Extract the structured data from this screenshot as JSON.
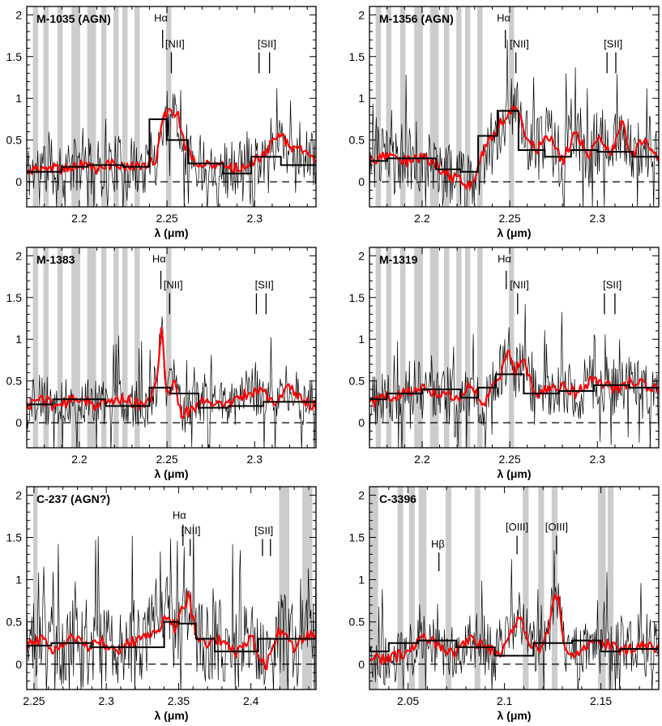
{
  "chart_data": [
    {
      "type": "line",
      "title": "M-1035 (AGN)",
      "xlabel": "λ (μm)",
      "ylabel": "",
      "xlim": [
        2.17,
        2.335
      ],
      "ylim": [
        -0.3,
        2.1
      ],
      "xticks": [
        2.2,
        2.25,
        2.3
      ],
      "xtick_labels": [
        "2.2",
        "2.25",
        "2.3"
      ],
      "yticks": [
        0,
        0.5,
        1,
        1.5,
        2
      ],
      "ytick_labels": [
        "0",
        "0.5",
        "1",
        "1.5",
        "2"
      ],
      "sky_bands": [
        [
          2.1735,
          2.1765
        ],
        [
          2.1795,
          2.1825
        ],
        [
          2.1875,
          2.1905
        ],
        [
          2.1955,
          2.2005
        ],
        [
          2.2045,
          2.2095
        ],
        [
          2.2125,
          2.2155
        ],
        [
          2.2195,
          2.2225
        ],
        [
          2.2245,
          2.2275
        ],
        [
          2.2315,
          2.2345
        ],
        [
          2.2495,
          2.2525
        ]
      ],
      "lines": [
        {
          "label": "Hα",
          "x": 2.2475,
          "y0": 1.6,
          "y1": 1.82,
          "lx": 2.2465,
          "ly": 1.92
        },
        {
          "label": "[NII]",
          "x": 2.2525,
          "y0": 1.3,
          "y1": 1.55,
          "lx": 2.2545,
          "ly": 1.61
        },
        {
          "label": "[SII]",
          "x": 2.3025,
          "y0": 1.3,
          "y1": 1.55,
          "lx": 2.307,
          "ly": 1.61
        },
        {
          "label": "",
          "x": 2.3085,
          "y0": 1.3,
          "y1": 1.55
        }
      ],
      "smooth": {
        "name": "smoothed spectrum",
        "color": "#ff0000",
        "x": [
          2.17,
          2.18,
          2.19,
          2.2,
          2.21,
          2.22,
          2.23,
          2.238,
          2.244,
          2.248,
          2.252,
          2.256,
          2.26,
          2.265,
          2.275,
          2.285,
          2.295,
          2.303,
          2.31,
          2.316,
          2.32,
          2.325,
          2.33,
          2.335
        ],
        "y": [
          0.12,
          0.18,
          0.15,
          0.2,
          0.15,
          0.22,
          0.18,
          0.15,
          0.3,
          0.75,
          0.88,
          0.82,
          0.45,
          0.25,
          0.22,
          0.15,
          0.18,
          0.3,
          0.45,
          0.55,
          0.38,
          0.42,
          0.3,
          0.25
        ]
      },
      "binned": {
        "name": "binned spectrum",
        "color": "#000000",
        "edges": [
          2.17,
          2.19,
          2.205,
          2.225,
          2.24,
          2.25,
          2.262,
          2.282,
          2.298,
          2.315,
          2.335
        ],
        "values": [
          0.12,
          0.18,
          0.2,
          0.18,
          0.75,
          0.5,
          0.22,
          0.1,
          0.3,
          0.2
        ]
      },
      "noise_seed": 11,
      "noise_amp": 0.35
    },
    {
      "type": "line",
      "title": "M-1356 (AGN)",
      "xlabel": "λ (μm)",
      "ylabel": "",
      "xlim": [
        2.17,
        2.335
      ],
      "ylim": [
        -0.3,
        2.1
      ],
      "xticks": [
        2.2,
        2.25,
        2.3
      ],
      "xtick_labels": [
        "2.2",
        "2.25",
        "2.3"
      ],
      "yticks": [
        0,
        0.5,
        1,
        1.5,
        2
      ],
      "ytick_labels": [
        "0",
        "0.5",
        "1",
        "1.5",
        "2"
      ],
      "sky_bands": [
        [
          2.1735,
          2.1765
        ],
        [
          2.1795,
          2.1825
        ],
        [
          2.1875,
          2.1905
        ],
        [
          2.1955,
          2.2005
        ],
        [
          2.2045,
          2.2095
        ],
        [
          2.2125,
          2.2155
        ],
        [
          2.2195,
          2.2225
        ],
        [
          2.2245,
          2.2275
        ],
        [
          2.2315,
          2.2345
        ],
        [
          2.2495,
          2.2525
        ]
      ],
      "lines": [
        {
          "label": "Hα",
          "x": 2.2475,
          "y0": 1.6,
          "y1": 1.82,
          "lx": 2.2465,
          "ly": 1.92
        },
        {
          "label": "[NII]",
          "x": 2.2535,
          "y0": 1.3,
          "y1": 1.55,
          "lx": 2.2555,
          "ly": 1.61
        },
        {
          "label": "[SII]",
          "x": 2.3055,
          "y0": 1.3,
          "y1": 1.55,
          "lx": 2.309,
          "ly": 1.61
        },
        {
          "label": "",
          "x": 2.3105,
          "y0": 1.3,
          "y1": 1.55
        }
      ],
      "smooth": {
        "name": "smoothed spectrum",
        "color": "#ff0000",
        "x": [
          2.17,
          2.18,
          2.19,
          2.2,
          2.208,
          2.215,
          2.222,
          2.228,
          2.234,
          2.24,
          2.245,
          2.25,
          2.254,
          2.258,
          2.265,
          2.272,
          2.28,
          2.288,
          2.295,
          2.302,
          2.308,
          2.314,
          2.32,
          2.326,
          2.335
        ],
        "y": [
          0.25,
          0.3,
          0.25,
          0.28,
          0.2,
          0.1,
          0.0,
          -0.05,
          0.3,
          0.55,
          0.7,
          0.82,
          0.95,
          0.6,
          0.35,
          0.55,
          0.25,
          0.6,
          0.3,
          0.55,
          0.35,
          0.7,
          0.3,
          0.5,
          0.25
        ]
      },
      "binned": {
        "name": "binned spectrum",
        "color": "#000000",
        "edges": [
          2.17,
          2.18,
          2.208,
          2.222,
          2.232,
          2.243,
          2.255,
          2.27,
          2.285,
          2.3,
          2.32,
          2.335
        ],
        "values": [
          0.25,
          0.28,
          0.15,
          0.12,
          0.55,
          0.85,
          0.38,
          0.3,
          0.38,
          0.36,
          0.3
        ]
      },
      "noise_seed": 23,
      "noise_amp": 0.4
    },
    {
      "type": "line",
      "title": "M-1383",
      "xlabel": "λ (μm)",
      "ylabel": "",
      "xlim": [
        2.17,
        2.335
      ],
      "ylim": [
        -0.3,
        2.1
      ],
      "xticks": [
        2.2,
        2.25,
        2.3
      ],
      "xtick_labels": [
        "2.2",
        "2.25",
        "2.3"
      ],
      "yticks": [
        0,
        0.5,
        1,
        1.5,
        2
      ],
      "ytick_labels": [
        "0",
        "0.5",
        "1",
        "1.5",
        "2"
      ],
      "sky_bands": [
        [
          2.1735,
          2.1765
        ],
        [
          2.1795,
          2.1825
        ],
        [
          2.1875,
          2.1905
        ],
        [
          2.1955,
          2.2005
        ],
        [
          2.2045,
          2.2095
        ],
        [
          2.2125,
          2.2155
        ],
        [
          2.2195,
          2.2225
        ],
        [
          2.2245,
          2.2275
        ],
        [
          2.2315,
          2.2345
        ],
        [
          2.2495,
          2.2525
        ]
      ],
      "lines": [
        {
          "label": "Hα",
          "x": 2.2465,
          "y0": 1.6,
          "y1": 1.82,
          "lx": 2.2455,
          "ly": 1.92
        },
        {
          "label": "[NII]",
          "x": 2.2515,
          "y0": 1.3,
          "y1": 1.55,
          "lx": 2.2535,
          "ly": 1.61
        },
        {
          "label": "[SII]",
          "x": 2.301,
          "y0": 1.3,
          "y1": 1.55,
          "lx": 2.3055,
          "ly": 1.61
        },
        {
          "label": "",
          "x": 2.3065,
          "y0": 1.3,
          "y1": 1.55
        }
      ],
      "smooth": {
        "name": "smoothed spectrum",
        "color": "#ff0000",
        "x": [
          2.17,
          2.178,
          2.186,
          2.194,
          2.202,
          2.21,
          2.218,
          2.226,
          2.234,
          2.24,
          2.244,
          2.247,
          2.25,
          2.254,
          2.258,
          2.264,
          2.272,
          2.28,
          2.288,
          2.296,
          2.304,
          2.312,
          2.32,
          2.328,
          2.335
        ],
        "y": [
          0.2,
          0.3,
          0.2,
          0.25,
          0.3,
          0.2,
          0.25,
          0.3,
          0.2,
          0.25,
          0.5,
          1.18,
          0.3,
          0.5,
          0.1,
          0.15,
          0.3,
          0.2,
          0.25,
          0.35,
          0.4,
          0.2,
          0.45,
          0.25,
          0.2
        ]
      },
      "binned": {
        "name": "binned spectrum",
        "color": "#000000",
        "edges": [
          2.17,
          2.185,
          2.215,
          2.24,
          2.252,
          2.268,
          2.285,
          2.305,
          2.32,
          2.335
        ],
        "values": [
          0.22,
          0.28,
          0.2,
          0.42,
          0.35,
          0.18,
          0.2,
          0.25,
          0.25
        ]
      },
      "noise_seed": 37,
      "noise_amp": 0.3
    },
    {
      "type": "line",
      "title": "M-1319",
      "xlabel": "λ (μm)",
      "ylabel": "",
      "xlim": [
        2.17,
        2.335
      ],
      "ylim": [
        -0.3,
        2.1
      ],
      "xticks": [
        2.2,
        2.25,
        2.3
      ],
      "xtick_labels": [
        "2.2",
        "2.25",
        "2.3"
      ],
      "yticks": [
        0,
        0.5,
        1,
        1.5,
        2
      ],
      "ytick_labels": [
        "0",
        "0.5",
        "1",
        "1.5",
        "2"
      ],
      "sky_bands": [
        [
          2.1735,
          2.1765
        ],
        [
          2.1795,
          2.1825
        ],
        [
          2.1875,
          2.1905
        ],
        [
          2.1955,
          2.2005
        ],
        [
          2.2045,
          2.2095
        ],
        [
          2.2125,
          2.2155
        ],
        [
          2.2195,
          2.2225
        ],
        [
          2.2245,
          2.2275
        ],
        [
          2.2315,
          2.2345
        ],
        [
          2.2495,
          2.2525
        ]
      ],
      "lines": [
        {
          "label": "Hα",
          "x": 2.248,
          "y0": 1.6,
          "y1": 1.82,
          "lx": 2.247,
          "ly": 1.92
        },
        {
          "label": "[NII]",
          "x": 2.2545,
          "y0": 1.3,
          "y1": 1.55,
          "lx": 2.2555,
          "ly": 1.61
        },
        {
          "label": "[SII]",
          "x": 2.304,
          "y0": 1.3,
          "y1": 1.55,
          "lx": 2.3085,
          "ly": 1.61
        },
        {
          "label": "",
          "x": 2.31,
          "y0": 1.3,
          "y1": 1.55
        }
      ],
      "smooth": {
        "name": "smoothed spectrum",
        "color": "#ff0000",
        "x": [
          2.17,
          2.18,
          2.19,
          2.2,
          2.21,
          2.22,
          2.228,
          2.235,
          2.24,
          2.245,
          2.249,
          2.253,
          2.258,
          2.264,
          2.272,
          2.28,
          2.288,
          2.296,
          2.304,
          2.312,
          2.32,
          2.328,
          2.335
        ],
        "y": [
          0.25,
          0.3,
          0.35,
          0.4,
          0.35,
          0.3,
          0.45,
          0.2,
          0.4,
          0.6,
          0.88,
          0.6,
          0.8,
          0.3,
          0.4,
          0.45,
          0.35,
          0.5,
          0.45,
          0.4,
          0.5,
          0.45,
          0.4
        ]
      },
      "binned": {
        "name": "binned spectrum",
        "color": "#000000",
        "edges": [
          2.17,
          2.18,
          2.2,
          2.222,
          2.232,
          2.242,
          2.258,
          2.278,
          2.298,
          2.318,
          2.335
        ],
        "values": [
          0.28,
          0.35,
          0.4,
          0.3,
          0.42,
          0.58,
          0.35,
          0.38,
          0.45,
          0.42
        ]
      },
      "noise_seed": 51,
      "noise_amp": 0.35
    },
    {
      "type": "line",
      "title": "C-237 (AGN?)",
      "xlabel": "λ (μm)",
      "ylabel": "",
      "xlim": [
        2.245,
        2.445
      ],
      "ylim": [
        -0.3,
        2.1
      ],
      "xticks": [
        2.25,
        2.3,
        2.35,
        2.4
      ],
      "xtick_labels": [
        "2.25",
        "2.3",
        "2.35",
        "2.4"
      ],
      "yticks": [
        0,
        0.5,
        1,
        1.5,
        2
      ],
      "ytick_labels": [
        "0",
        "0.5",
        "1",
        "1.5",
        "2"
      ],
      "sky_bands": [
        [
          2.2495,
          2.2525
        ],
        [
          2.4195,
          2.4265
        ],
        [
          2.4355,
          2.4425
        ]
      ],
      "lines": [
        {
          "label": "Hα",
          "x": 2.353,
          "y0": 1.4,
          "y1": 1.65,
          "lx": 2.3505,
          "ly": 1.72
        },
        {
          "label": "[NII]",
          "x": 2.358,
          "y0": 1.28,
          "y1": 1.48,
          "lx": 2.3585,
          "ly": 1.54
        },
        {
          "label": "[SII]",
          "x": 2.408,
          "y0": 1.28,
          "y1": 1.48,
          "lx": 2.409,
          "ly": 1.54
        },
        {
          "label": "",
          "x": 2.4135,
          "y0": 1.28,
          "y1": 1.48
        }
      ],
      "smooth": {
        "name": "smoothed spectrum",
        "color": "#ff0000",
        "x": [
          2.245,
          2.255,
          2.265,
          2.275,
          2.285,
          2.295,
          2.305,
          2.315,
          2.325,
          2.335,
          2.342,
          2.348,
          2.353,
          2.357,
          2.362,
          2.37,
          2.38,
          2.39,
          2.4,
          2.41,
          2.42,
          2.43,
          2.44,
          2.445
        ],
        "y": [
          0.2,
          0.3,
          0.15,
          0.35,
          0.2,
          0.3,
          0.15,
          0.25,
          0.3,
          0.35,
          0.6,
          0.4,
          0.7,
          0.8,
          0.35,
          0.2,
          0.3,
          0.1,
          0.35,
          -0.05,
          0.4,
          0.2,
          0.35,
          0.3
        ]
      },
      "binned": {
        "name": "binned spectrum",
        "color": "#000000",
        "edges": [
          2.245,
          2.262,
          2.29,
          2.32,
          2.34,
          2.35,
          2.362,
          2.375,
          2.392,
          2.405,
          2.425,
          2.445
        ],
        "values": [
          0.22,
          0.25,
          0.2,
          0.2,
          0.5,
          0.48,
          0.3,
          0.15,
          0.15,
          0.3,
          0.3
        ]
      },
      "noise_seed": 67,
      "noise_amp": 0.5
    },
    {
      "type": "line",
      "title": "C-3396",
      "xlabel": "λ (μm)",
      "ylabel": "",
      "xlim": [
        2.03,
        2.18
      ],
      "ylim": [
        -0.3,
        2.1
      ],
      "xticks": [
        2.05,
        2.1,
        2.15
      ],
      "xtick_labels": [
        "2.05",
        "2.1",
        "2.15"
      ],
      "yticks": [
        0,
        0.5,
        1,
        1.5,
        2
      ],
      "ytick_labels": [
        "0",
        "0.5",
        "1",
        "1.5",
        "2"
      ],
      "sky_bands": [
        [
          2.0305,
          2.0345
        ],
        [
          2.0445,
          2.0475
        ],
        [
          2.0505,
          2.0535
        ],
        [
          2.0555,
          2.0595
        ],
        [
          2.0695,
          2.0725
        ],
        [
          2.0845,
          2.0875
        ],
        [
          2.1095,
          2.1125
        ],
        [
          2.1175,
          2.1205
        ],
        [
          2.1245,
          2.1275
        ],
        [
          2.1485,
          2.1525
        ],
        [
          2.1535,
          2.1565
        ]
      ],
      "lines": [
        {
          "label": "Hβ",
          "x": 2.066,
          "y0": 1.1,
          "y1": 1.32,
          "lx": 2.0655,
          "ly": 1.38
        },
        {
          "label": "[OIII]",
          "x": 2.1065,
          "y0": 1.3,
          "y1": 1.52,
          "lx": 2.1065,
          "ly": 1.58
        },
        {
          "label": "[OIII]",
          "x": 2.127,
          "y0": 1.3,
          "y1": 1.52,
          "lx": 2.127,
          "ly": 1.58
        }
      ],
      "smooth": {
        "name": "smoothed spectrum",
        "color": "#ff0000",
        "x": [
          2.03,
          2.04,
          2.05,
          2.058,
          2.066,
          2.074,
          2.082,
          2.09,
          2.098,
          2.104,
          2.108,
          2.112,
          2.118,
          2.123,
          2.126,
          2.128,
          2.131,
          2.136,
          2.144,
          2.152,
          2.16,
          2.17,
          2.18
        ],
        "y": [
          0.1,
          0.05,
          0.15,
          0.35,
          0.2,
          0.1,
          0.3,
          0.2,
          0.1,
          0.4,
          0.55,
          0.3,
          0.15,
          0.4,
          0.9,
          0.75,
          0.2,
          0.1,
          0.2,
          0.25,
          0.15,
          0.2,
          0.2
        ]
      },
      "binned": {
        "name": "binned spectrum",
        "color": "#000000",
        "edges": [
          2.03,
          2.04,
          2.055,
          2.075,
          2.095,
          2.115,
          2.135,
          2.15,
          2.16,
          2.18
        ],
        "values": [
          0.15,
          0.25,
          0.28,
          0.2,
          0.1,
          0.25,
          0.28,
          0.15,
          0.18
        ]
      },
      "noise_seed": 83,
      "noise_amp": 0.35
    }
  ]
}
